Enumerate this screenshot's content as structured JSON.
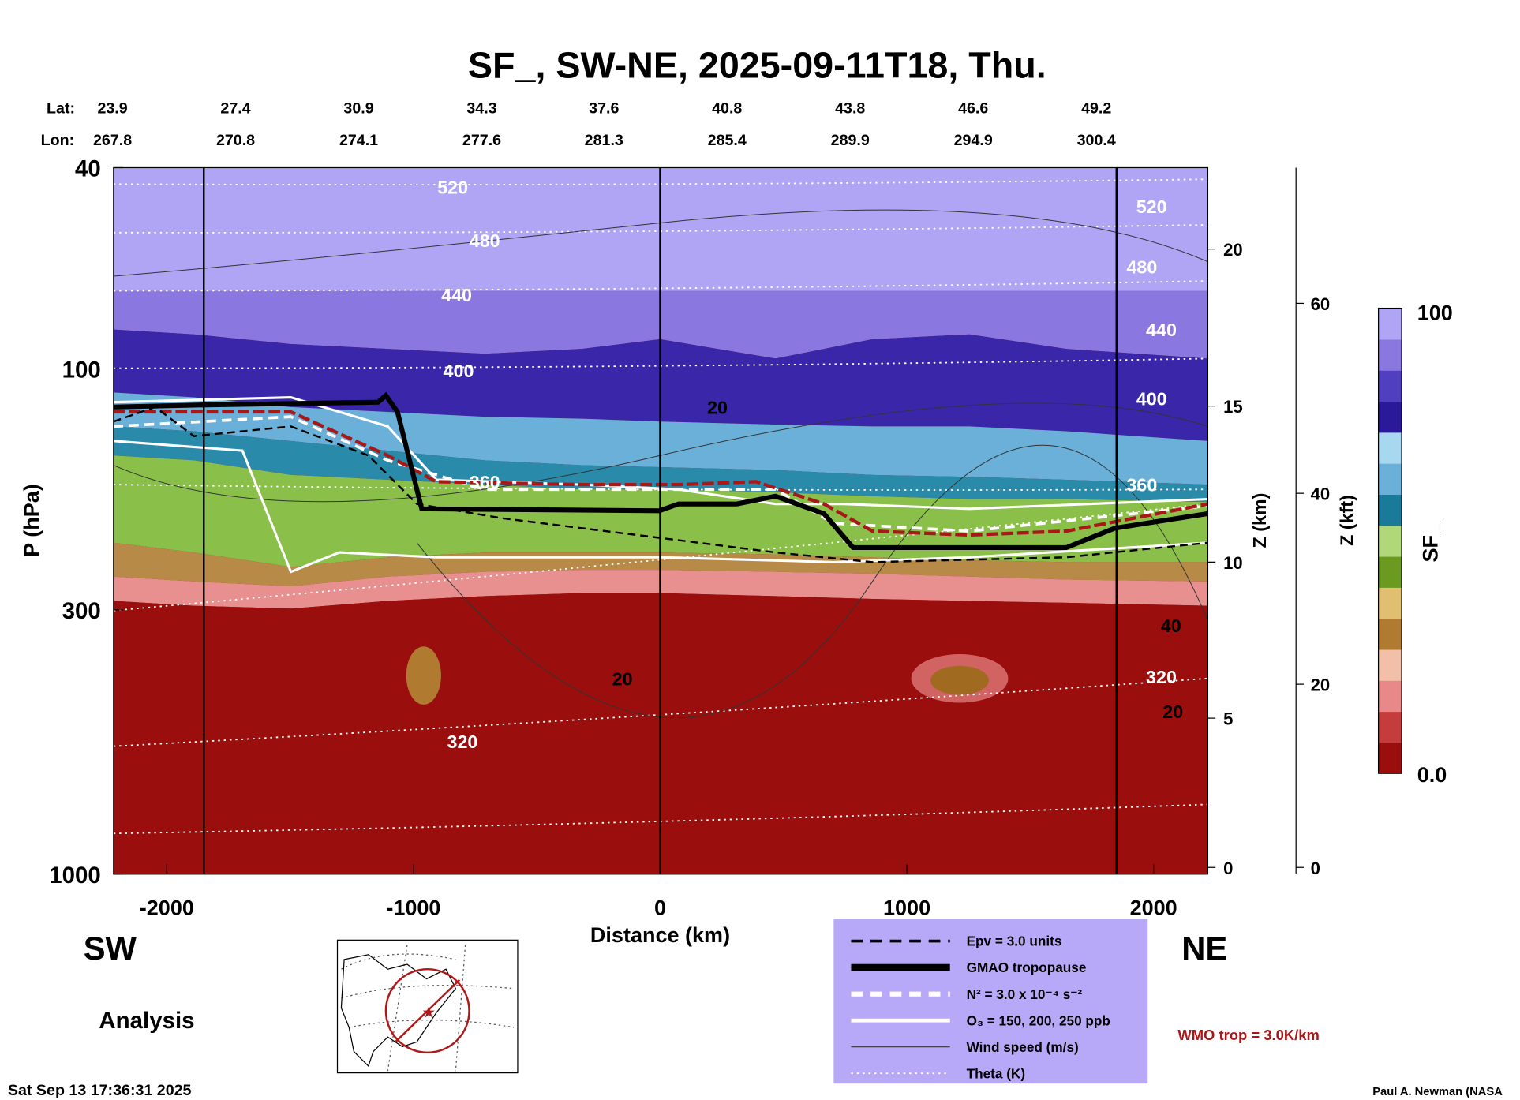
{
  "chart_data": {
    "type": "heatmap",
    "title": "SF_, SW-NE, 2025-09-11T18, Thu.",
    "xlabel": "Distance (km)",
    "ylabel": "P (hPa)",
    "ylabel_right1": "Z (km)",
    "ylabel_right2": "Z (kft)",
    "xlim": [
      -2120,
      2220
    ],
    "ylim": [
      1000,
      40
    ],
    "yscale": "log",
    "x_ticks": [
      "-2000",
      "-1000",
      "0",
      "1000",
      "2000"
    ],
    "x_tick_values": [
      -2000,
      -1000,
      0,
      1000,
      2000
    ],
    "y_ticks": [
      "40",
      "100",
      "300",
      "1000"
    ],
    "y_tick_values": [
      40,
      100,
      300,
      1000
    ],
    "z_km_ticks": [
      "20",
      "15",
      "10",
      "5",
      "0"
    ],
    "z_kft_ticks": [
      "60",
      "40",
      "20",
      "0"
    ],
    "lat_label": "Lat:",
    "lon_label": "Lon:",
    "lat": [
      "23.9",
      "27.4",
      "30.9",
      "34.3",
      "37.6",
      "40.8",
      "43.8",
      "46.6",
      "49.2"
    ],
    "lon": [
      "267.8",
      "270.8",
      "274.1",
      "277.6",
      "281.3",
      "285.4",
      "289.9",
      "294.9",
      "300.4"
    ],
    "vertical_lines_km": [
      -1850,
      0,
      1850
    ],
    "colorbar": {
      "label": "SF_",
      "min": "0.0",
      "max": "100",
      "colors": [
        "#9a0e0e",
        "#c43c3c",
        "#e88888",
        "#f2c0a8",
        "#b07a30",
        "#e0c070",
        "#6a9a20",
        "#b0d878",
        "#1a7a9a",
        "#6ab0d8",
        "#a8d8f0",
        "#2a1a9a",
        "#5040c0",
        "#8a78e0",
        "#b0a4f4"
      ]
    },
    "theta_labels": [
      "520",
      "480",
      "440",
      "400",
      "360",
      "320",
      "520",
      "480",
      "440",
      "400",
      "360",
      "320"
    ],
    "wind_labels": [
      "20",
      "20",
      "40",
      "20"
    ],
    "legend": [
      {
        "label": "Epv = 3.0 units",
        "style": "black-dashed"
      },
      {
        "label": "GMAO tropopause",
        "style": "black-thick"
      },
      {
        "label": "N² = 3.0 x 10⁻⁴ s⁻²",
        "style": "white-dashed"
      },
      {
        "label": "O₃ = 150, 200, 250 ppb",
        "style": "white-solid"
      },
      {
        "label": "Wind speed (m/s)",
        "style": "thin-gray"
      },
      {
        "label": "Theta (K)",
        "style": "white-dotted"
      }
    ],
    "legend_bg": "#b7a9f7"
  },
  "labels": {
    "sw": "SW",
    "ne": "NE",
    "analysis": "Analysis",
    "timestamp": "Sat Sep 13 17:36:31 2025",
    "wmo": "WMO trop = 3.0K/km",
    "credit": "Paul A. Newman (NASA"
  }
}
